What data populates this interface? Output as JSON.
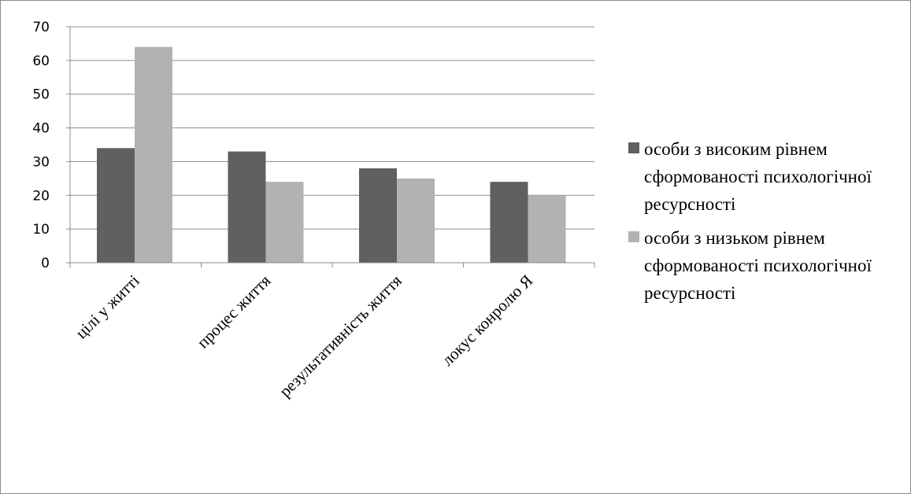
{
  "chart_data": {
    "type": "bar",
    "categories": [
      "цілі у житті",
      "процес життя",
      "результативність життя",
      "локус конролю Я"
    ],
    "series": [
      {
        "name": "особи з високим рівнем сформованості психологічної ресурсності",
        "values": [
          34,
          33,
          28,
          24
        ],
        "color": "#606060"
      },
      {
        "name": "особи з низьком рівнем сформованості психологічної ресурсності",
        "values": [
          64,
          24,
          25,
          20
        ],
        "color": "#b2b2b2"
      }
    ],
    "ylim": [
      0,
      70
    ],
    "yticks": [
      0,
      10,
      20,
      30,
      40,
      50,
      60,
      70
    ],
    "grid": true,
    "legend_position": "right"
  }
}
